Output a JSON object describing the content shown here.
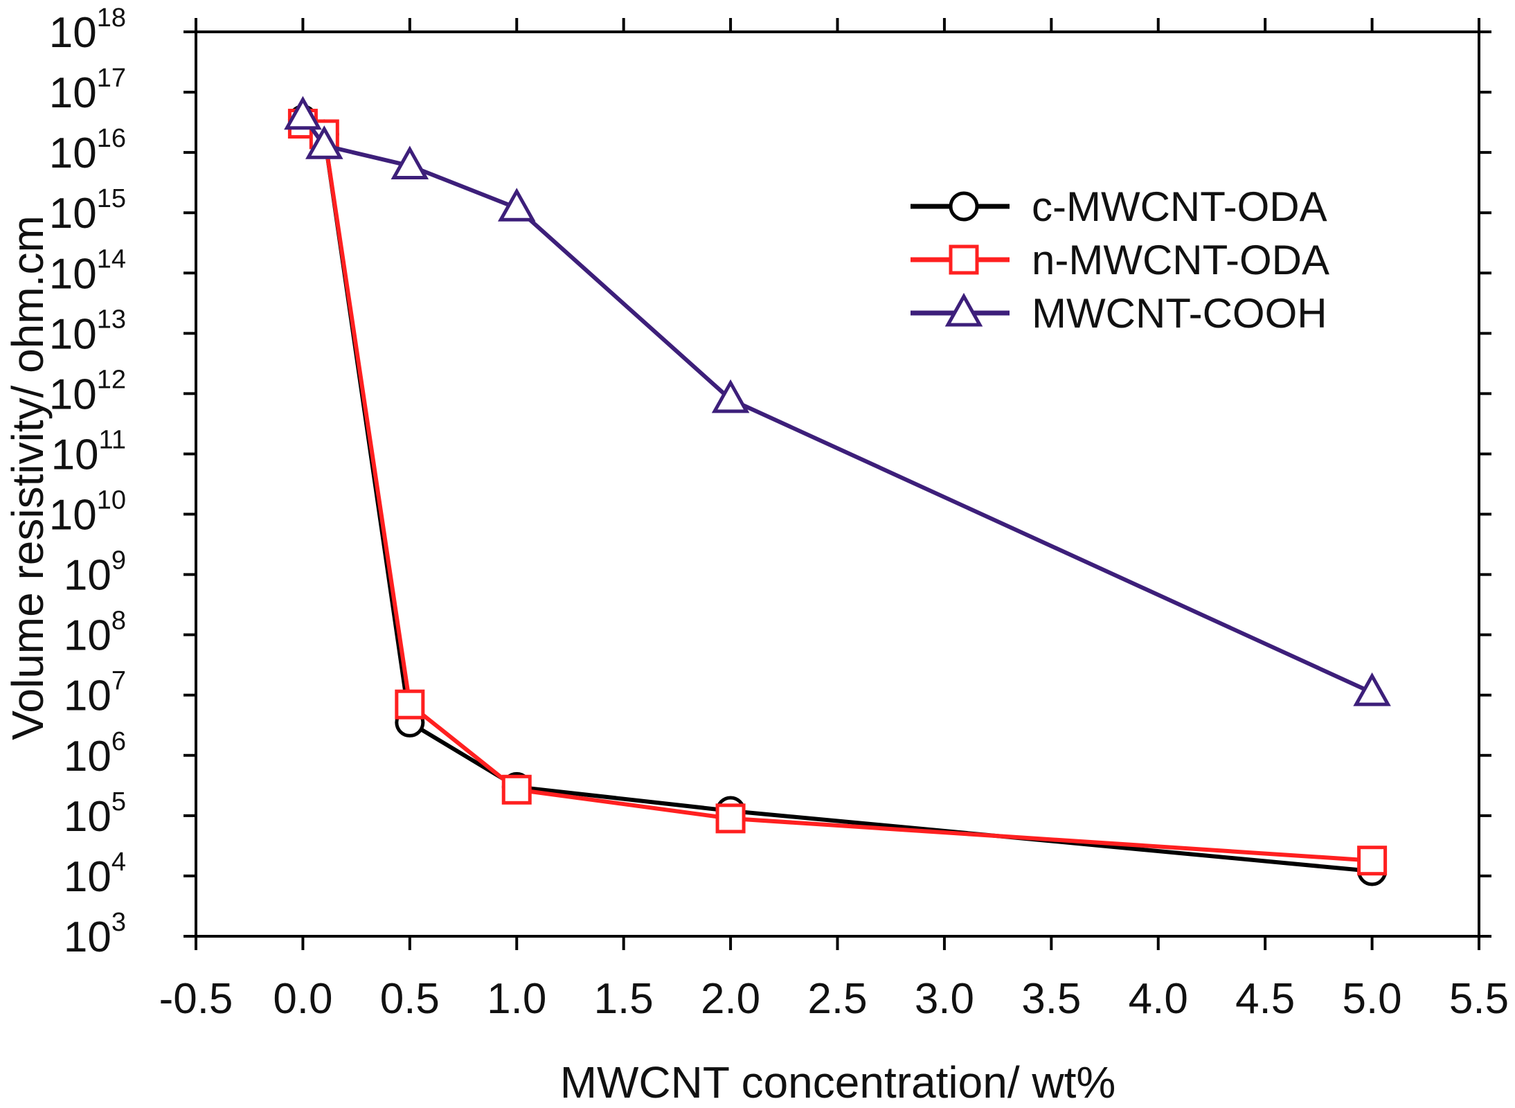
{
  "chart_data": {
    "type": "line",
    "title": "",
    "xlabel": "MWCNT concentration/ wt%",
    "ylabel": "Volume resistivity/ ohm.cm",
    "xlim": [
      -0.5,
      5.5
    ],
    "xticks": [
      -0.5,
      0.0,
      0.5,
      1.0,
      1.5,
      2.0,
      2.5,
      3.0,
      3.5,
      4.0,
      4.5,
      5.0,
      5.5
    ],
    "xtick_labels": [
      "-0.5",
      "0.0",
      "0.5",
      "1.0",
      "1.5",
      "2.0",
      "2.5",
      "3.0",
      "3.5",
      "4.0",
      "4.5",
      "5.0",
      "5.5"
    ],
    "yscale": "log",
    "ylim": [
      1000,
      1e+18
    ],
    "yticks": [
      {
        "base": "10",
        "exp": "3"
      },
      {
        "base": "10",
        "exp": "4"
      },
      {
        "base": "10",
        "exp": "5"
      },
      {
        "base": "10",
        "exp": "6"
      },
      {
        "base": "10",
        "exp": "7"
      },
      {
        "base": "10",
        "exp": "8"
      },
      {
        "base": "10",
        "exp": "9"
      },
      {
        "base": "10",
        "exp": "10"
      },
      {
        "base": "10",
        "exp": "11"
      },
      {
        "base": "10",
        "exp": "12"
      },
      {
        "base": "10",
        "exp": "13"
      },
      {
        "base": "10",
        "exp": "14"
      },
      {
        "base": "10",
        "exp": "15"
      },
      {
        "base": "10",
        "exp": "16"
      },
      {
        "base": "10",
        "exp": "17"
      },
      {
        "base": "10",
        "exp": "18"
      }
    ],
    "legend_position": "upper-right",
    "series": [
      {
        "name": "c-MWCNT-ODA",
        "color": "#000000",
        "marker": "circle",
        "x": [
          0.0,
          0.1,
          0.5,
          1.0,
          2.0,
          5.0
        ],
        "y": [
          3.5e+16,
          2e+16,
          3500000.0,
          300000.0,
          120000.0,
          12000.0
        ]
      },
      {
        "name": "n-MWCNT-ODA",
        "color": "#ff2020",
        "marker": "square",
        "x": [
          0.0,
          0.1,
          0.5,
          1.0,
          2.0,
          5.0
        ],
        "y": [
          3e+16,
          2e+16,
          7000000.0,
          270000.0,
          90000.0,
          18000.0
        ]
      },
      {
        "name": "MWCNT-COOH",
        "color": "#3d1f7a",
        "marker": "triangle",
        "x": [
          0.0,
          0.1,
          0.5,
          1.0,
          2.0,
          5.0
        ],
        "y": [
          4e+16,
          1.3e+16,
          6000000000000000.0,
          1200000000000000.0,
          800000000000.0,
          11000000.0
        ]
      }
    ]
  }
}
